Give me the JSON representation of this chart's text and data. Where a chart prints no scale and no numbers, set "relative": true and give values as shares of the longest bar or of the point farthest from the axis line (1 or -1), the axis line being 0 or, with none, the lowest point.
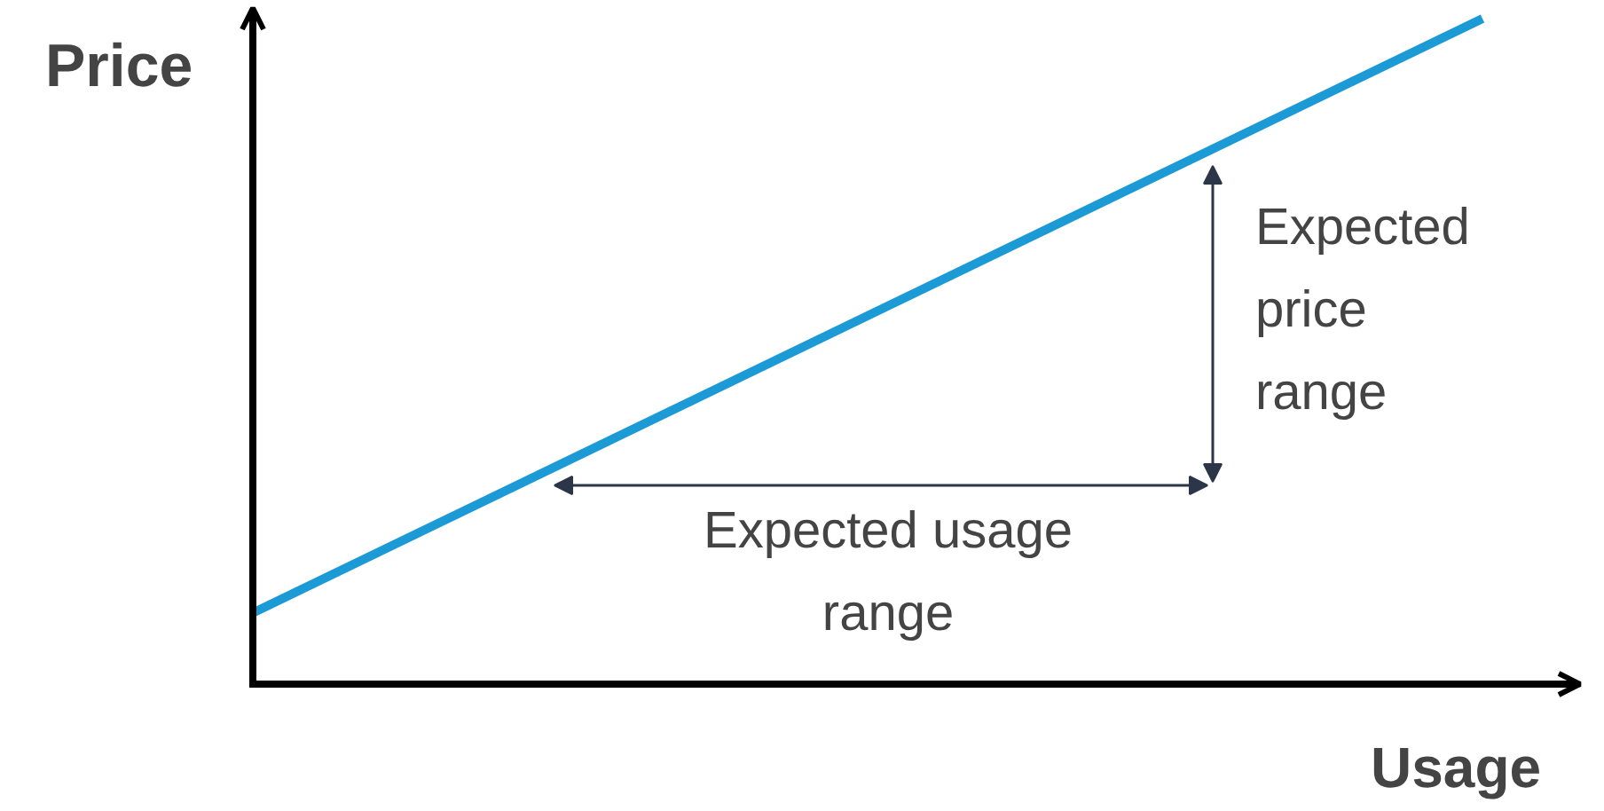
{
  "chart_data": {
    "type": "line",
    "relative": true,
    "xlabel": "Usage",
    "ylabel": "Price",
    "categories": [
      null,
      null
    ],
    "series": [
      {
        "color": "#1b9ad6",
        "values": [
          0.107,
          1
        ]
      }
    ],
    "annotations": [
      "Expected price range",
      "Expected usage range"
    ]
  }
}
